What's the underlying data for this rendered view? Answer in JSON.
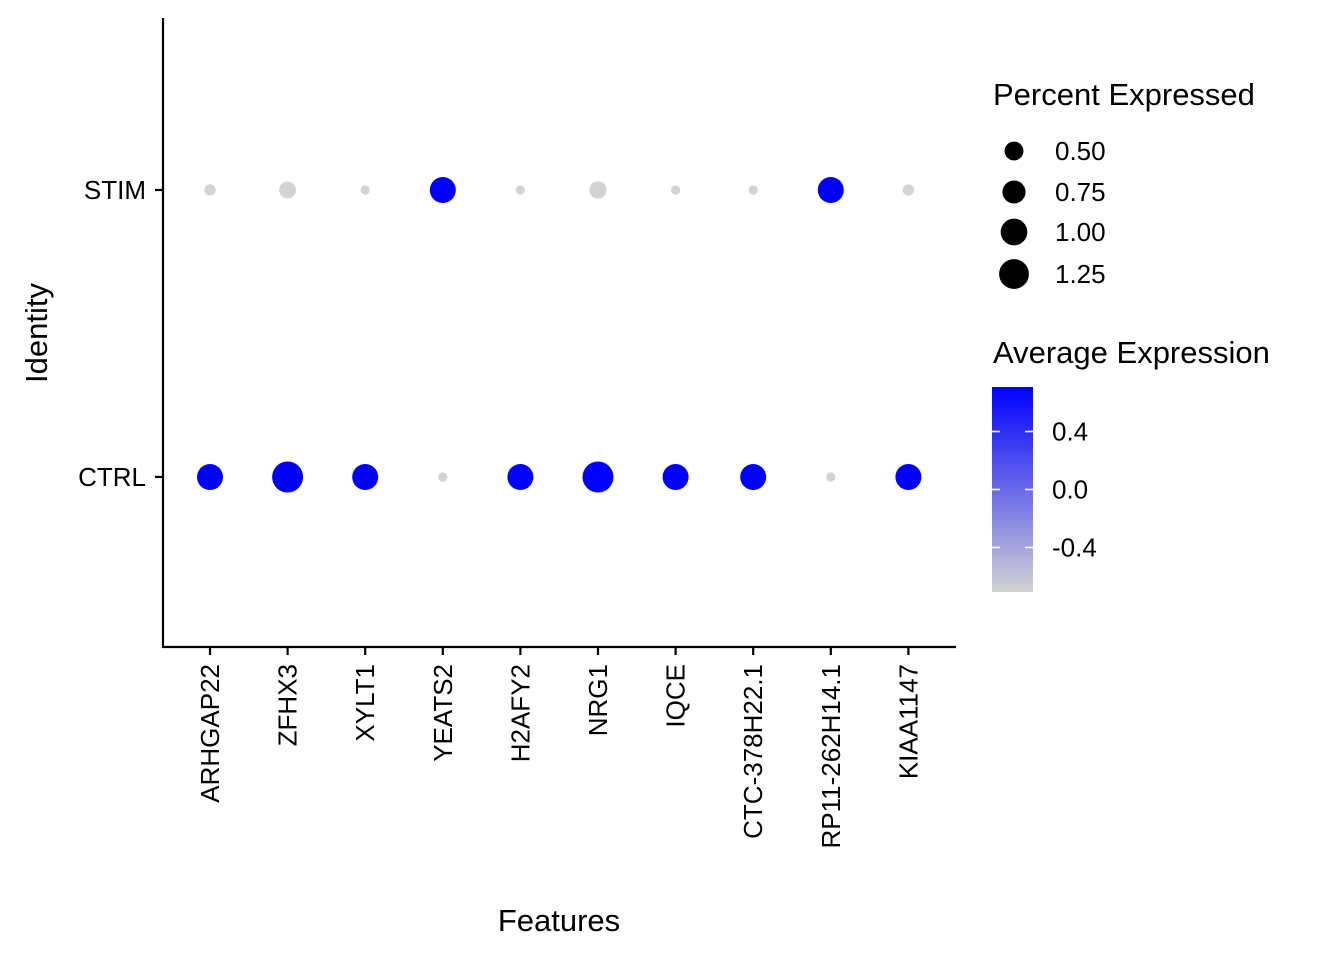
{
  "chart_data": {
    "type": "scatter",
    "subtype": "dot-plot",
    "xlabel": "Features",
    "ylabel": "Identity",
    "features": [
      "ARHGAP22",
      "ZFHX3",
      "XYLT1",
      "YEATS2",
      "H2AFY2",
      "NRG1",
      "IQCE",
      "CTC-378H22.1",
      "RP11-262H14.1",
      "KIAA1147"
    ],
    "identities": [
      "STIM",
      "CTRL"
    ],
    "series": [
      {
        "name": "STIM",
        "pct_exp": [
          0.18,
          0.4,
          0.12,
          0.95,
          0.12,
          0.42,
          0.12,
          0.12,
          0.95,
          0.18
        ],
        "avg_exp": [
          -0.707,
          -0.707,
          -0.707,
          0.707,
          -0.707,
          -0.707,
          -0.707,
          -0.707,
          0.707,
          -0.707
        ]
      },
      {
        "name": "CTRL",
        "pct_exp": [
          0.95,
          1.35,
          0.95,
          0.12,
          0.95,
          1.35,
          0.95,
          0.95,
          0.12,
          0.95
        ],
        "avg_exp": [
          0.707,
          0.707,
          0.707,
          -0.707,
          0.707,
          0.707,
          0.707,
          0.707,
          -0.707,
          0.707
        ]
      }
    ],
    "size_legend": {
      "title": "Percent Expressed",
      "breaks": [
        0.5,
        0.75,
        1.0,
        1.25
      ],
      "labels": [
        "0.50",
        "0.75",
        "1.00",
        "1.25"
      ]
    },
    "color_legend": {
      "title": "Average Expression",
      "range": [
        -0.707,
        0.707
      ],
      "breaks": [
        0.4,
        0.0,
        -0.4
      ],
      "labels": [
        "0.4",
        "0.0",
        "-0.4"
      ],
      "low_color": "#d3d3d3",
      "high_color": "#0000ff"
    },
    "grid": false,
    "legend_position": "right"
  }
}
